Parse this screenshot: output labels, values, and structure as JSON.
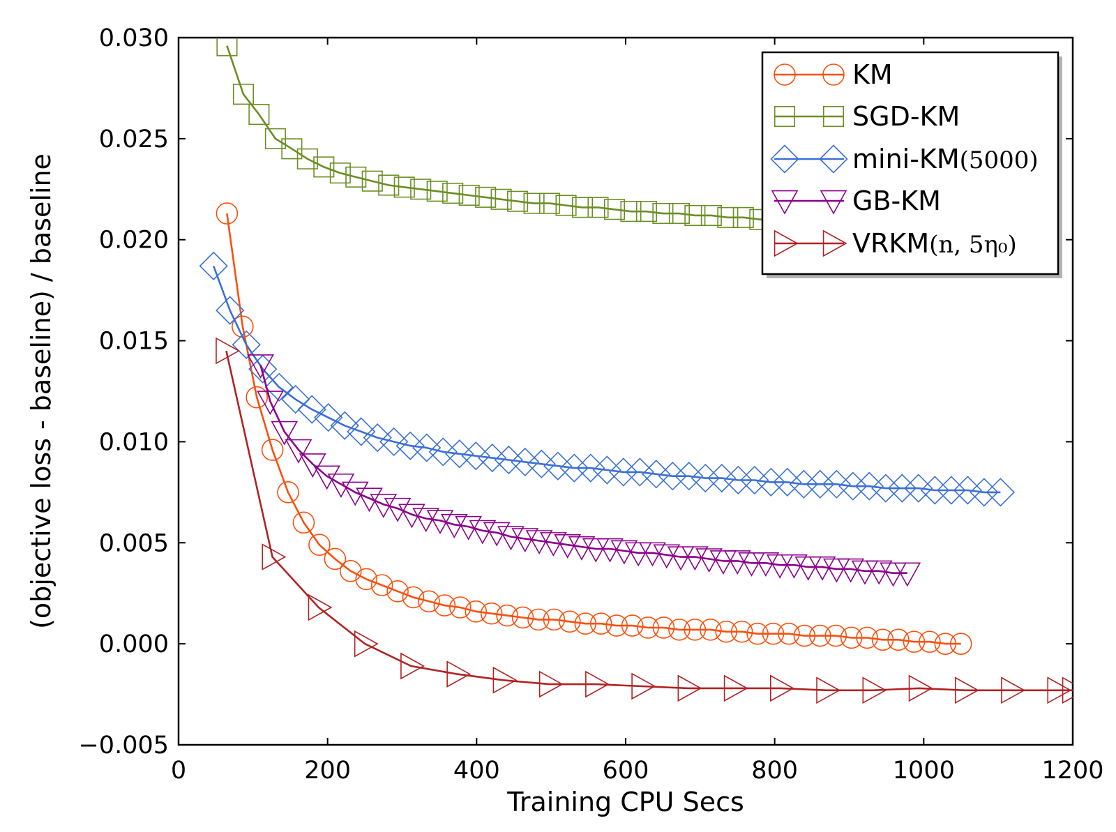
{
  "chart_data": {
    "type": "line",
    "title": "",
    "xlabel": "Training CPU Secs",
    "ylabel": "(objective loss - baseline) / baseline",
    "xlim": [
      0,
      1200
    ],
    "ylim": [
      -0.005,
      0.03
    ],
    "xticks": [
      "0",
      "200",
      "400",
      "600",
      "800",
      "1000",
      "1200"
    ],
    "yticks": [
      "−0.005",
      "0.000",
      "0.005",
      "0.010",
      "0.015",
      "0.020",
      "0.025",
      "0.030"
    ],
    "grid": false,
    "legend_position": "top-right",
    "series": [
      {
        "name": "KM",
        "name_text": "KM",
        "name_math": "",
        "color": "#fc4f0c",
        "marker": "circle",
        "x": [
          65,
          86,
          105,
          126,
          147,
          168,
          189,
          210,
          231,
          252,
          273,
          294,
          315,
          336,
          357,
          378,
          399,
          420,
          441,
          462,
          483,
          504,
          525,
          546,
          567,
          588,
          609,
          630,
          651,
          672,
          693,
          714,
          735,
          756,
          777,
          798,
          819,
          840,
          861,
          882,
          903,
          924,
          945,
          966,
          987,
          1008,
          1029,
          1050
        ],
        "y": [
          0.0213,
          0.0157,
          0.0122,
          0.0096,
          0.0075,
          0.006,
          0.0049,
          0.0042,
          0.0036,
          0.0032,
          0.0029,
          0.0026,
          0.0023,
          0.0021,
          0.0019,
          0.0018,
          0.0016,
          0.0015,
          0.0014,
          0.0013,
          0.0012,
          0.0012,
          0.0011,
          0.001,
          0.001,
          0.0009,
          0.0009,
          0.0008,
          0.0008,
          0.0007,
          0.0007,
          0.0007,
          0.0006,
          0.0006,
          0.0005,
          0.0005,
          0.0005,
          0.0004,
          0.0004,
          0.0004,
          0.0003,
          0.0003,
          0.0002,
          0.0002,
          0.0001,
          0.0001,
          0.0,
          0.0
        ]
      },
      {
        "name": "SGD-KM",
        "name_text": "SGD-KM",
        "name_math": "",
        "color": "#6b8e23",
        "marker": "square",
        "x": [
          65,
          87,
          108,
          130,
          152,
          173,
          195,
          217,
          238,
          260,
          282,
          303,
          325,
          347,
          368,
          390,
          412,
          433,
          455,
          477,
          498,
          520,
          542,
          563,
          585,
          607,
          628,
          650,
          672,
          693,
          715,
          737,
          758,
          780,
          802,
          823,
          845,
          867,
          888,
          910,
          932,
          953,
          975,
          997,
          1018,
          1040,
          1062
        ],
        "y": [
          0.0296,
          0.0272,
          0.0262,
          0.025,
          0.0245,
          0.024,
          0.0236,
          0.0233,
          0.0231,
          0.0229,
          0.0227,
          0.0226,
          0.0225,
          0.0224,
          0.0223,
          0.0222,
          0.0221,
          0.022,
          0.0219,
          0.0218,
          0.0218,
          0.0217,
          0.0216,
          0.0216,
          0.0215,
          0.0214,
          0.0214,
          0.0213,
          0.0213,
          0.0212,
          0.0212,
          0.0211,
          0.0211,
          0.021,
          0.021,
          0.0209,
          0.0209,
          0.0208,
          0.0208,
          0.0207,
          0.0207,
          0.0207,
          0.0206,
          0.0206,
          0.0206,
          0.0205,
          0.0205
        ]
      },
      {
        "name": "mini-KM(5000)",
        "name_text": "mini-KM",
        "name_math": "(5000)",
        "color": "#3a6fd8",
        "marker": "diamond",
        "x": [
          47,
          69,
          91,
          113,
          135,
          157,
          179,
          201,
          223,
          245,
          267,
          289,
          311,
          333,
          355,
          377,
          399,
          421,
          443,
          465,
          487,
          509,
          531,
          553,
          575,
          597,
          619,
          641,
          663,
          685,
          707,
          729,
          751,
          773,
          795,
          817,
          839,
          861,
          883,
          905,
          927,
          949,
          971,
          993,
          1015,
          1037,
          1059,
          1081,
          1103
        ],
        "y": [
          0.0187,
          0.0165,
          0.0148,
          0.0136,
          0.0127,
          0.0121,
          0.0116,
          0.0112,
          0.0108,
          0.0105,
          0.0102,
          0.01,
          0.0098,
          0.0097,
          0.0095,
          0.0094,
          0.0093,
          0.0092,
          0.0091,
          0.009,
          0.0089,
          0.0088,
          0.0087,
          0.0087,
          0.0086,
          0.0085,
          0.0085,
          0.0084,
          0.0083,
          0.0083,
          0.0082,
          0.0082,
          0.0081,
          0.0081,
          0.008,
          0.008,
          0.0079,
          0.0079,
          0.0079,
          0.0078,
          0.0078,
          0.0077,
          0.0077,
          0.0077,
          0.0076,
          0.0076,
          0.0076,
          0.0075,
          0.0075
        ]
      },
      {
        "name": "GB-KM",
        "name_text": "GB-KM",
        "name_math": "",
        "color": "#8b008b",
        "marker": "triangle-down",
        "x": [
          110,
          123,
          142,
          161,
          180,
          199,
          218,
          237,
          256,
          275,
          294,
          313,
          332,
          351,
          370,
          389,
          408,
          427,
          446,
          465,
          484,
          503,
          522,
          541,
          560,
          579,
          598,
          617,
          636,
          655,
          674,
          693,
          712,
          731,
          750,
          769,
          788,
          807,
          826,
          845,
          864,
          883,
          902,
          921,
          940,
          959,
          978
        ],
        "y": [
          0.0138,
          0.012,
          0.0105,
          0.0096,
          0.0089,
          0.0083,
          0.0079,
          0.0075,
          0.0072,
          0.0069,
          0.0067,
          0.0064,
          0.0062,
          0.0061,
          0.0059,
          0.0058,
          0.0056,
          0.0055,
          0.0053,
          0.0052,
          0.0051,
          0.005,
          0.0049,
          0.0048,
          0.0047,
          0.0047,
          0.0046,
          0.0045,
          0.0045,
          0.0044,
          0.0043,
          0.0043,
          0.0042,
          0.0041,
          0.0041,
          0.004,
          0.004,
          0.0039,
          0.0039,
          0.0038,
          0.0038,
          0.0037,
          0.0037,
          0.0036,
          0.0036,
          0.0035,
          0.0035
        ]
      },
      {
        "name": "VRKM(n, 5η0)",
        "name_text": "VRKM",
        "name_math": "(n, 5η₀)",
        "color": "#b22222",
        "marker": "triangle-right",
        "x": [
          64,
          126,
          188,
          250,
          312,
          374,
          436,
          498,
          560,
          622,
          684,
          746,
          808,
          870,
          932,
          994,
          1056,
          1118,
          1180,
          1200
        ],
        "y": [
          0.0145,
          0.0043,
          0.0018,
          0.0,
          -0.0011,
          -0.0015,
          -0.0018,
          -0.002,
          -0.002,
          -0.0021,
          -0.0022,
          -0.0022,
          -0.0022,
          -0.0023,
          -0.0023,
          -0.0022,
          -0.0023,
          -0.0023,
          -0.0023,
          -0.0023
        ]
      }
    ]
  }
}
